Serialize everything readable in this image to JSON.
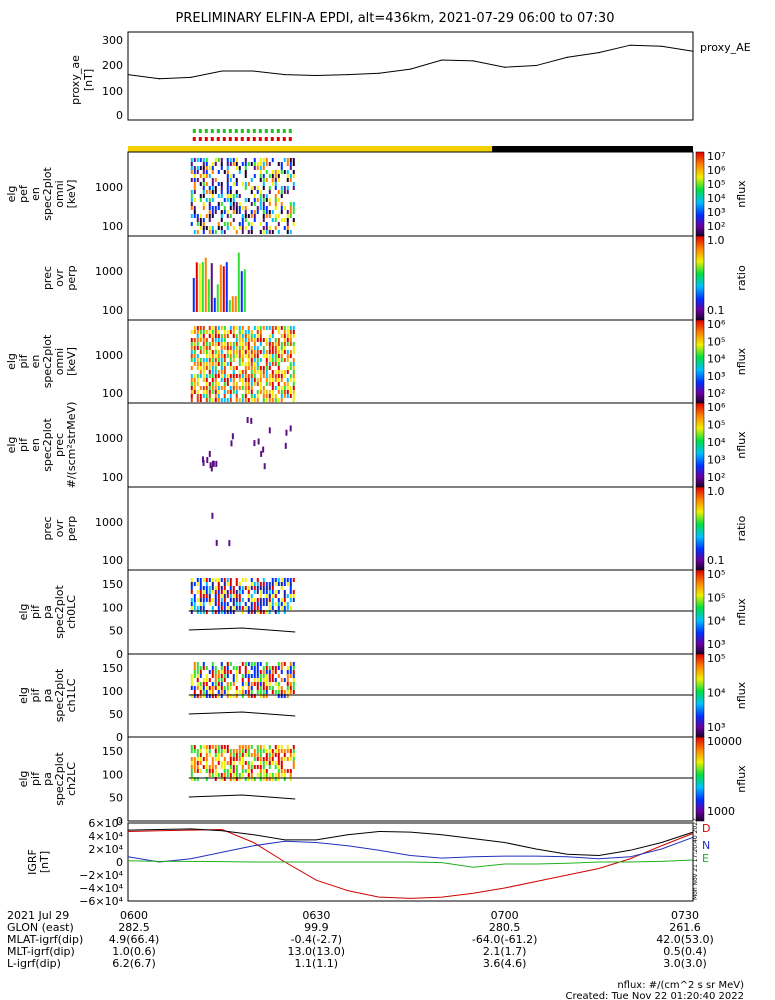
{
  "title": "PRELIMINARY ELFIN-A EPDI, alt=436km, 2021-07-29 06:00 to 07:30",
  "proxy_panel": {
    "series_label": "proxy_AE",
    "ylabel": [
      "proxy_ae",
      "[nT]"
    ],
    "yticks": [
      "0",
      "100",
      "200",
      "300"
    ]
  },
  "panels": [
    {
      "ylabel": [
        "elg",
        "pef",
        "en",
        "spec2plot",
        "omni",
        "[keV]"
      ],
      "yticks": [
        "100",
        "1000"
      ],
      "cb_ticks": [
        "10⁷",
        "10⁶",
        "10⁵",
        "10⁴",
        "10³",
        "10²"
      ],
      "cb_label": "nflux"
    },
    {
      "ylabel": [
        "prec",
        "ovr",
        "perp"
      ],
      "yticks": [
        "100",
        "1000"
      ],
      "cb_ticks": [
        "1.0",
        "0.1"
      ],
      "cb_label": "ratio"
    },
    {
      "ylabel": [
        "elg",
        "pif",
        "en",
        "spec2plot",
        "omni",
        "[keV]"
      ],
      "yticks": [
        "100",
        "1000"
      ],
      "cb_ticks": [
        "10⁶",
        "10⁵",
        "10⁴",
        "10³",
        "10²"
      ],
      "cb_label": "nflux"
    },
    {
      "ylabel": [
        "elg",
        "pif",
        "en",
        "spec2plot",
        "prec",
        "#/(scm²strMeV)"
      ],
      "yticks": [
        "100",
        "1000"
      ],
      "cb_ticks": [
        "10⁶",
        "10⁵",
        "10⁴",
        "10³",
        "10²"
      ],
      "cb_label": "nflux"
    },
    {
      "ylabel": [
        "prec",
        "ovr",
        "perp"
      ],
      "yticks": [
        "100",
        "1000"
      ],
      "cb_ticks": [
        "1.0",
        "0.1"
      ],
      "cb_label": "ratio"
    },
    {
      "ylabel": [
        "elg",
        "pif",
        "pa",
        "spec2plot",
        "ch0LC"
      ],
      "yticks": [
        "0",
        "50",
        "100",
        "150"
      ],
      "cb_ticks": [
        "10⁵",
        "10⁵",
        "10⁴",
        "10³"
      ],
      "cb_label": "nflux"
    },
    {
      "ylabel": [
        "elg",
        "pif",
        "pa",
        "spec2plot",
        "ch1LC"
      ],
      "yticks": [
        "0",
        "50",
        "100",
        "150"
      ],
      "cb_ticks": [
        "10⁵",
        "10⁴",
        "10³"
      ],
      "cb_label": "nflux"
    },
    {
      "ylabel": [
        "elg",
        "pif",
        "pa",
        "spec2plot",
        "ch2LC"
      ],
      "yticks": [
        "0",
        "50",
        "100",
        "150"
      ],
      "cb_ticks": [
        "10000",
        "1000"
      ],
      "cb_label": "nflux"
    }
  ],
  "igrf_panel": {
    "ylabel": [
      "IGRF",
      "[nT]"
    ],
    "yticks": [
      "6×10⁴",
      "4×10⁴",
      "2×10⁴",
      "0",
      "−2×10⁴",
      "−4×10⁴",
      "−6×10⁴"
    ],
    "legend": [
      {
        "name": "D",
        "color": "#d00000"
      },
      {
        "name": "N",
        "color": "#2030c0"
      },
      {
        "name": "E",
        "color": "#20b020"
      }
    ],
    "stamp": "Mon Nov 21 17:20:40 2022"
  },
  "xaxis": {
    "rows": [
      {
        "label": "2021 Jul 29",
        "values": [
          "0600",
          "0630",
          "0700",
          "0730"
        ]
      },
      {
        "label": "GLON (east)",
        "values": [
          "282.5",
          "99.9",
          "280.5",
          "261.6"
        ]
      },
      {
        "label": "MLAT-igrf(dip)",
        "values": [
          "4.9(66.4)",
          "-0.4(-2.7)",
          "-64.0(-61.2)",
          "42.0(53.0)"
        ]
      },
      {
        "label": "MLT-igrf(dip)",
        "values": [
          "1.0(0.6)",
          "13.0(13.0)",
          "2.1(1.7)",
          "0.5(0.4)"
        ]
      },
      {
        "label": "L-igrf(dip)",
        "values": [
          "6.2(6.7)",
          "1.1(1.1)",
          "3.6(4.6)",
          "3.0(3.0)"
        ]
      }
    ]
  },
  "footer": [
    "nflux: #/(cm^2 s sr MeV)",
    "Created: Tue Nov 22 01:20:40 2022"
  ],
  "chart_data": {
    "type": "line",
    "title": "PRELIMINARY ELFIN-A EPDI, alt=436km, 2021-07-29 06:00 to 07:30",
    "x_unit": "UT HHMM",
    "xlim": [
      "0600",
      "0730"
    ],
    "proxy_ae": {
      "name": "proxy_AE",
      "ylim": [
        0,
        320
      ],
      "x": [
        "06:00",
        "06:05",
        "06:10",
        "06:15",
        "06:20",
        "06:25",
        "06:30",
        "06:35",
        "06:40",
        "06:45",
        "06:50",
        "06:55",
        "07:00",
        "07:05",
        "07:10",
        "07:15",
        "07:20",
        "07:25",
        "07:30"
      ],
      "values": [
        165,
        150,
        155,
        178,
        178,
        165,
        162,
        165,
        170,
        185,
        218,
        215,
        192,
        198,
        228,
        245,
        272,
        268,
        250
      ]
    },
    "igrf": {
      "ylim": [
        -60000,
        60000
      ],
      "x": [
        "06:00",
        "06:05",
        "06:10",
        "06:15",
        "06:20",
        "06:25",
        "06:30",
        "06:35",
        "06:40",
        "06:45",
        "06:50",
        "06:55",
        "07:00",
        "07:05",
        "07:10",
        "07:15",
        "07:20",
        "07:25",
        "07:30"
      ],
      "series": [
        {
          "name": "D",
          "values": [
            47000,
            48000,
            49000,
            50000,
            30000,
            0,
            -28000,
            -44000,
            -54000,
            -56000,
            -54000,
            -48000,
            -40000,
            -30000,
            -20000,
            -10000,
            5000,
            25000,
            44000
          ]
        },
        {
          "name": "N",
          "values": [
            8000,
            0,
            5000,
            15000,
            25000,
            32000,
            30000,
            25000,
            18000,
            10000,
            6000,
            8000,
            9000,
            9000,
            8000,
            5000,
            8000,
            20000,
            38000
          ]
        },
        {
          "name": "E",
          "values": [
            2000,
            1000,
            1000,
            500,
            0,
            0,
            0,
            0,
            0,
            0,
            -1000,
            -8000,
            -3000,
            -3000,
            -2000,
            0,
            0,
            1000,
            3000
          ]
        },
        {
          "name": "",
          "values": [
            49000,
            50000,
            51000,
            48000,
            42000,
            34000,
            34000,
            42000,
            47000,
            46000,
            42000,
            36000,
            30000,
            20000,
            12000,
            10000,
            18000,
            30000,
            46000
          ]
        }
      ]
    },
    "science_zones": [
      {
        "start": "06:10",
        "end": "06:26"
      }
    ],
    "orbit_bar": [
      {
        "start": "06:00",
        "end": "06:58",
        "color": "#f5d000"
      },
      {
        "start": "06:58",
        "end": "07:30",
        "color": "#000000"
      }
    ]
  }
}
